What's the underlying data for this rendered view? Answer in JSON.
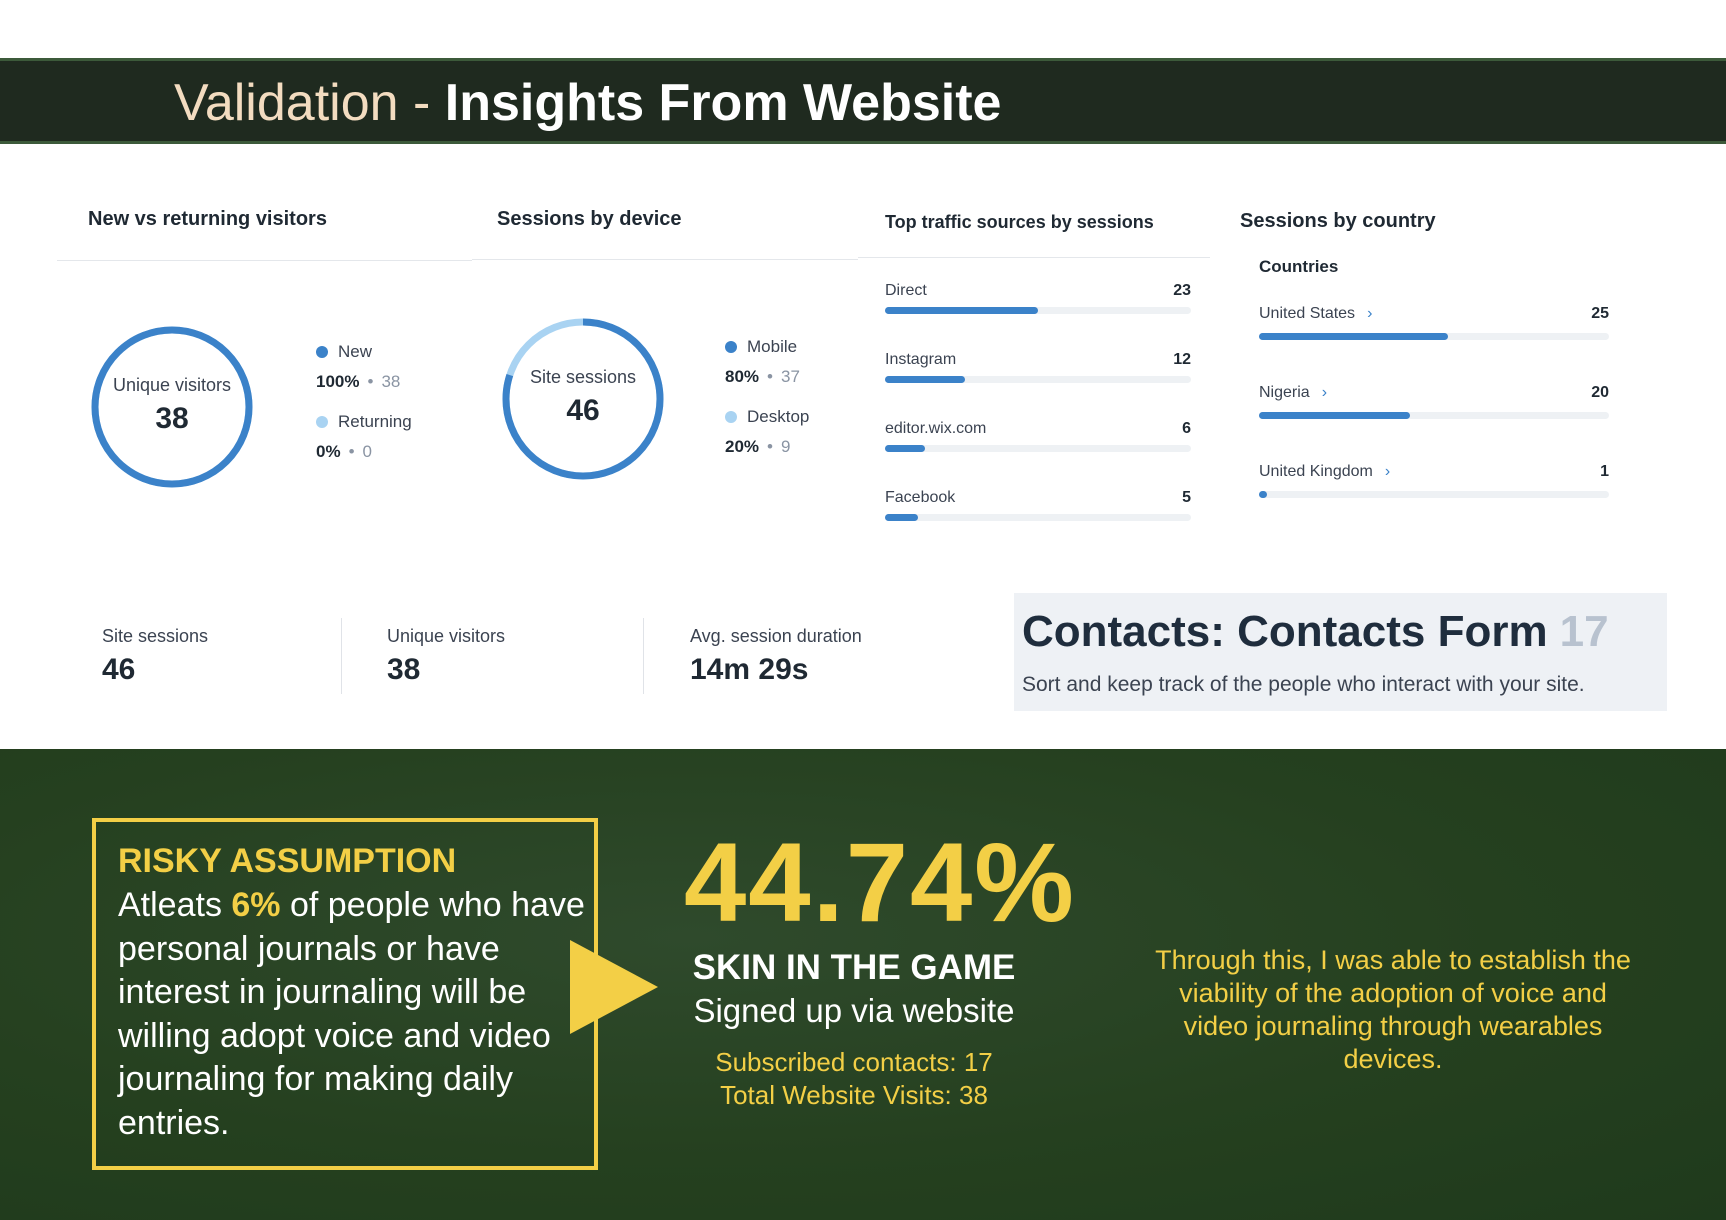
{
  "header": {
    "title_light": "Validation",
    "title_sep": "-",
    "title_bold": "Insights From Website"
  },
  "new_vs_returning": {
    "title": "New vs returning visitors",
    "center_label": "Unique visitors",
    "center_value": "38",
    "legend": [
      {
        "name": "New",
        "pct": "100%",
        "count": "38",
        "color": "#3b82c9",
        "fraction": 1.0
      },
      {
        "name": "Returning",
        "pct": "0%",
        "count": "0",
        "color": "#a9d3f2",
        "fraction": 0.0
      }
    ]
  },
  "sessions_by_device": {
    "title": "Sessions by device",
    "center_label": "Site sessions",
    "center_value": "46",
    "legend": [
      {
        "name": "Mobile",
        "pct": "80%",
        "count": "37",
        "color": "#3b82c9",
        "fraction": 0.8
      },
      {
        "name": "Desktop",
        "pct": "20%",
        "count": "9",
        "color": "#a9d3f2",
        "fraction": 0.2
      }
    ]
  },
  "traffic_sources": {
    "title": "Top traffic sources by sessions",
    "max": 23,
    "rows": [
      {
        "name": "Direct",
        "value": 23
      },
      {
        "name": "Instagram",
        "value": 12
      },
      {
        "name": "editor.wix.com",
        "value": 6
      },
      {
        "name": "Facebook",
        "value": 5
      }
    ]
  },
  "sessions_by_country": {
    "title": "Sessions by country",
    "subtitle": "Countries",
    "max": 50,
    "chevron": "›",
    "rows": [
      {
        "name": "United States",
        "value": 25
      },
      {
        "name": "Nigeria",
        "value": 20
      },
      {
        "name": "United Kingdom",
        "value": 1
      }
    ]
  },
  "kpis": [
    {
      "label": "Site sessions",
      "value": "46"
    },
    {
      "label": "Unique visitors",
      "value": "38"
    },
    {
      "label": "Avg. session duration",
      "value": "14m 29s"
    }
  ],
  "contacts": {
    "title": "Contacts: Contacts Form",
    "count": "17",
    "subtitle": "Sort and keep track of the people who interact with your site."
  },
  "risky": {
    "title": "RISKY ASSUMPTION",
    "body_before": "Atleats ",
    "body_highlight": "6%",
    "body_after": " of people who have personal journals or have interest in journaling will be willing adopt voice and video journaling for making daily entries."
  },
  "result": {
    "big_stat": "44.74%",
    "title": "SKIN IN THE GAME",
    "subtitle": "Signed up via website",
    "line1": "Subscribed contacts: 17",
    "line2": "Total Website Visits: 38"
  },
  "conclusion": {
    "text": "Through this, I was able to establish the viability of the adoption of voice and video journaling through wearables devices."
  },
  "colors": {
    "accent_blue": "#3b82c9",
    "light_blue": "#a9d3f2",
    "track": "#eef1f4",
    "yellow": "#f3cf46",
    "dark_green": "#1f2a1f"
  }
}
